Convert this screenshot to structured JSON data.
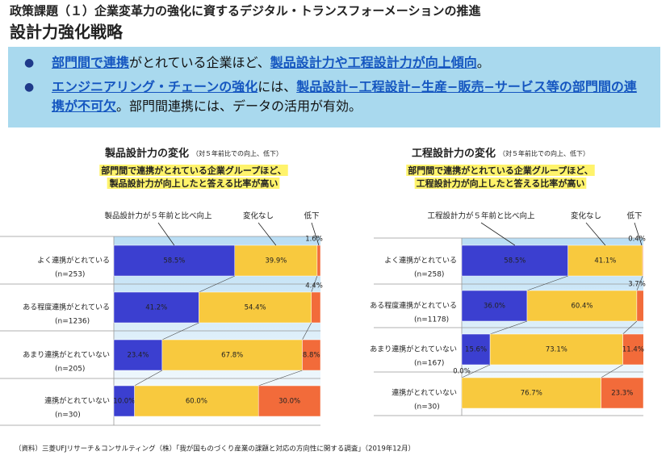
{
  "header": {
    "title": "政策課題（１）企業変革力の強化に資するデジタル・トランスフォーメーションの推進",
    "subtitle": "設計力強化戦略"
  },
  "bullets": [
    [
      {
        "text": "部門間で連携",
        "emphasis": true
      },
      {
        "text": "がとれている企業ほど、",
        "emphasis": false
      },
      {
        "text": "製品設計力や工程設計力が向上傾向",
        "emphasis": true
      },
      {
        "text": "。",
        "emphasis": false
      }
    ],
    [
      {
        "text": "エンジニアリング・チェーンの強化",
        "emphasis": true
      },
      {
        "text": "には、",
        "emphasis": false
      },
      {
        "text": "製品設計−工程設計−生産−販売−サービス等の部門間の連携が不可欠",
        "emphasis": true
      },
      {
        "text": "。部門間連携には、データの活用が有効。",
        "emphasis": false
      }
    ]
  ],
  "chart_data": [
    {
      "type": "stacked-bar-h",
      "title": "製品設計力の変化",
      "subtitle": "（対５年前比での向上、低下）",
      "annotation": [
        "部門間で連携がとれている企業グループほど、",
        "製品設計力が向上したと答える比率が高い"
      ],
      "categories": [
        "よく連携がとれている",
        "ある程度連携がとれている",
        "あまり連携がとれていない",
        "連携がとれていない"
      ],
      "sample_sizes": [
        "(n=253)",
        "(n=1236)",
        "(n=205)",
        "(n=30)"
      ],
      "xlim": [
        0,
        100
      ],
      "series": [
        {
          "name": "製品設計力が５年前と比べ向上",
          "color": "#3b3fd0",
          "values": [
            58.5,
            41.2,
            23.4,
            10.0
          ],
          "value_labels": [
            "58.5%",
            "41.2%",
            "23.4%",
            "10.0%"
          ]
        },
        {
          "name": "変化なし",
          "color": "#f8c93e",
          "values": [
            39.9,
            54.4,
            67.8,
            60.0
          ],
          "value_labels": [
            "39.9%",
            "54.4%",
            "67.8%",
            "60.0%"
          ]
        },
        {
          "name": "低下",
          "color": "#f26b3a",
          "values": [
            1.6,
            4.4,
            8.8,
            30.0
          ],
          "value_labels": [
            "1.6%",
            "4.4%",
            "8.8%",
            "30.0%"
          ]
        }
      ]
    },
    {
      "type": "stacked-bar-h",
      "title": "工程設計力の変化",
      "subtitle": "（対５年前比での向上、低下）",
      "annotation": [
        "部門間で連携がとれている企業グループほど、",
        "工程設計力が向上したと答える比率が高い"
      ],
      "categories": [
        "よく連携がとれている",
        "ある程度連携がとれている",
        "あまり連携がとれていない",
        "連携がとれていない"
      ],
      "sample_sizes": [
        "(n=258)",
        "(n=1178)",
        "(n=167)",
        "(n=30)"
      ],
      "xlim": [
        0,
        100
      ],
      "series": [
        {
          "name": "工程設計力が５年前と比べ向上",
          "color": "#3b3fd0",
          "values": [
            58.5,
            36.0,
            15.6,
            0.0
          ],
          "value_labels": [
            "58.5%",
            "36.0%",
            "15.6%",
            "0.0%"
          ]
        },
        {
          "name": "変化なし",
          "color": "#f8c93e",
          "values": [
            41.1,
            60.4,
            73.1,
            76.7
          ],
          "value_labels": [
            "41.1%",
            "60.4%",
            "73.1%",
            "76.7%"
          ]
        },
        {
          "name": "低下",
          "color": "#f26b3a",
          "values": [
            0.4,
            3.7,
            11.4,
            23.3
          ],
          "value_labels": [
            "0.4%",
            "3.7%",
            "11.4%",
            "23.3%"
          ]
        }
      ]
    }
  ],
  "source": "（資料）三菱UFJリサーチ＆コンサルティング（株）「我が国ものづくり産業の課題と対応の方向性に関する調査」（2019年12月）"
}
